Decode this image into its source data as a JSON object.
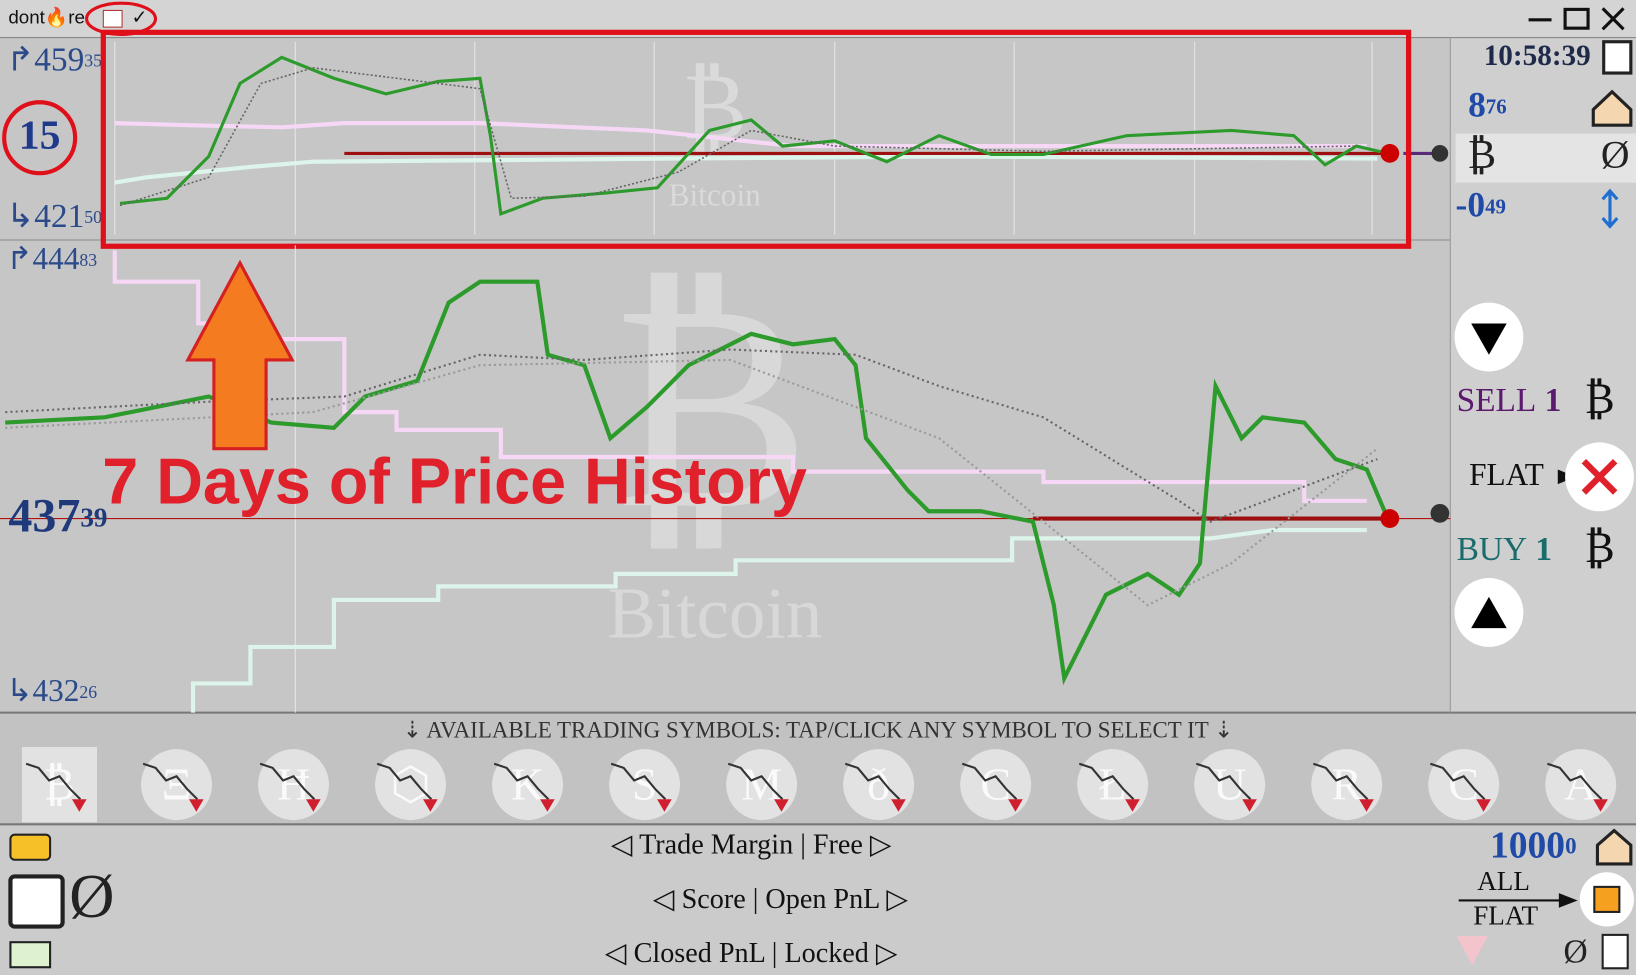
{
  "title_bar": {
    "app_name": "dont🔥re",
    "check": "✓"
  },
  "top_chart": {
    "high": {
      "main": "↱459",
      "small": "35"
    },
    "interval": "15",
    "low": {
      "main": "↳421",
      "small": "50"
    },
    "watermark_symbol": "₿",
    "watermark_name": "Bitcoin"
  },
  "main_chart": {
    "high": {
      "main": "↱444",
      "small": "83"
    },
    "last": {
      "main": "437",
      "small": "39"
    },
    "low": {
      "main": "↳432",
      "small": "26"
    },
    "watermark_symbol": "₿",
    "watermark_name": "Bitcoin"
  },
  "top_panel": {
    "time": "10:58:39",
    "value": {
      "main": "8",
      "small": "76"
    },
    "asset": "₿",
    "position": "Ø",
    "change": {
      "main": "-0",
      "small": "49"
    }
  },
  "trade_panel": {
    "sell": {
      "label": "SELL",
      "qty": "1",
      "asset": "₿"
    },
    "flat": "FLAT",
    "buy": {
      "label": "BUY",
      "qty": "1",
      "asset": "₿"
    }
  },
  "annotation": {
    "text": "7 Days of Price History"
  },
  "symbols": {
    "banner": "⇣ AVAILABLE TRADING SYMBOLS: TAP/CLICK ANY SYMBOL TO SELECT IT ⇣",
    "items": [
      "₿",
      "Ξ",
      "Ħ",
      "⬡",
      "K",
      "S",
      "M",
      "ð",
      "C",
      "Ł",
      "U",
      "R",
      "C",
      "A"
    ]
  },
  "footer": {
    "lines": [
      "◁ Trade Margin | Free ▷",
      "◁ Score | Open PnL ▷",
      "◁ Closed PnL | Locked ▷"
    ],
    "left_position": "Ø",
    "balance": {
      "main": "1000",
      "small": "0"
    },
    "all": "ALL",
    "flat": "FLAT",
    "position": "Ø"
  }
}
